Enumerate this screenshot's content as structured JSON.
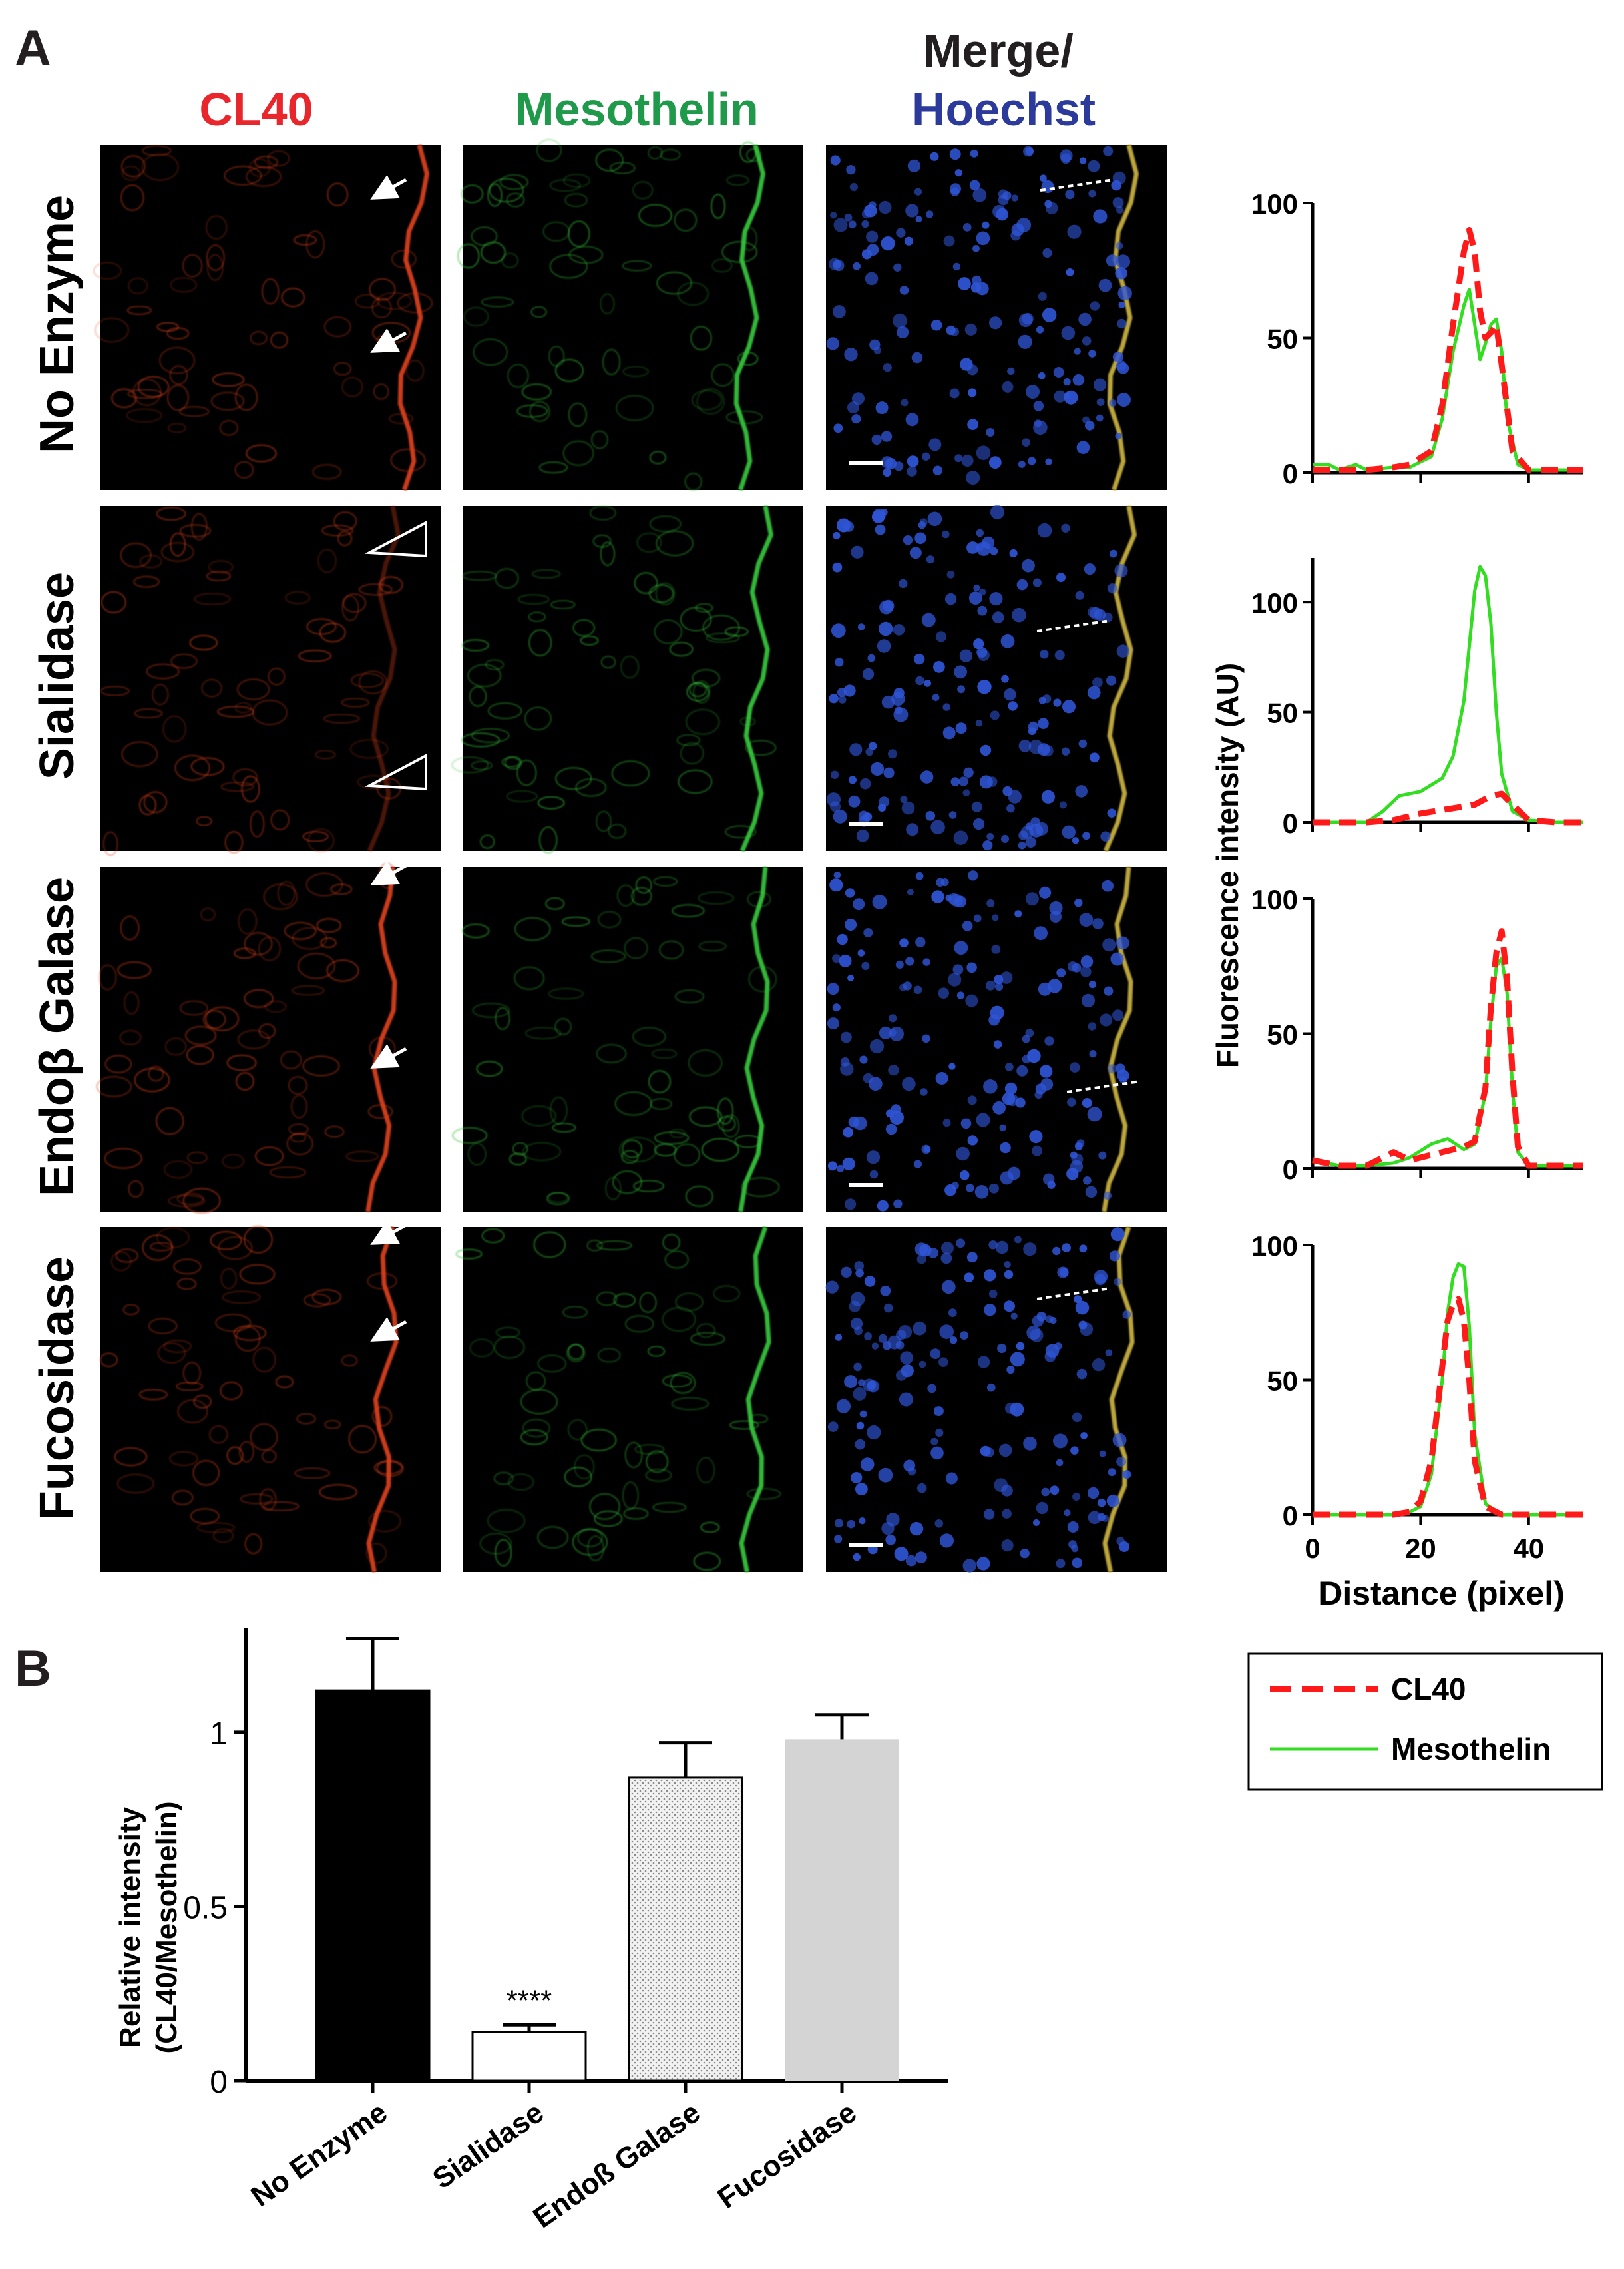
{
  "panel_a": {
    "label": "A",
    "column_headers": {
      "cl40": "CL40",
      "mesothelin": "Mesothelin",
      "merge_line1": "Merge/",
      "merge_line2": "Hoechst"
    },
    "row_labels": [
      "No Enzyme",
      "Sialidase",
      "Endoβ Galase",
      "Fucosidase"
    ],
    "colors": {
      "cl40": "#e8262b",
      "mesothelin": "#1f9a4a",
      "hoechst": "#2b3a9b",
      "tissue_red": "#d8401a",
      "tissue_green": "#36c23a",
      "nuclei": "#2f55d6"
    }
  },
  "line_profiles": {
    "y_axis_label": "Fluorescence intensity (AU)",
    "x_axis_label": "Distance (pixel)",
    "x_ticks": [
      "0",
      "20",
      "40"
    ],
    "x_range": [
      0,
      50
    ],
    "legend": {
      "cl40": "CL40",
      "mesothelin": "Mesothelin"
    },
    "series_colors": {
      "cl40": "#ff1a1a",
      "mesothelin": "#33dd22"
    },
    "chart_data": [
      {
        "type": "line",
        "panel": "No Enzyme",
        "ylim": [
          0,
          100
        ],
        "y_ticks": [
          "0",
          "50",
          "100"
        ],
        "series": [
          {
            "name": "CL40",
            "x": [
              0,
              5,
              10,
              15,
              18,
              22,
              24,
              26,
              28,
              29,
              30,
              31,
              32,
              33,
              34,
              35,
              37,
              40,
              45,
              50
            ],
            "values": [
              1,
              1,
              1,
              2,
              3,
              8,
              25,
              55,
              82,
              90,
              82,
              60,
              50,
              52,
              55,
              40,
              8,
              1,
              1,
              1
            ]
          },
          {
            "name": "Mesothelin",
            "x": [
              0,
              3,
              5,
              8,
              10,
              15,
              18,
              22,
              24,
              26,
              28,
              29,
              30,
              31,
              32,
              33,
              34,
              35,
              36,
              38,
              40,
              45,
              50
            ],
            "values": [
              3,
              3,
              1,
              3,
              1,
              2,
              2,
              6,
              20,
              45,
              62,
              68,
              55,
              42,
              48,
              55,
              57,
              45,
              20,
              3,
              1,
              1,
              1
            ]
          }
        ]
      },
      {
        "type": "line",
        "panel": "Sialidase",
        "ylim": [
          0,
          120
        ],
        "y_ticks": [
          "0",
          "50",
          "100"
        ],
        "series": [
          {
            "name": "CL40",
            "x": [
              0,
              10,
              15,
              20,
              25,
              30,
              33,
              35,
              37,
              40,
              45,
              50
            ],
            "values": [
              0,
              0,
              1,
              4,
              6,
              8,
              12,
              13,
              8,
              1,
              0,
              0
            ]
          },
          {
            "name": "Mesothelin",
            "x": [
              0,
              10,
              13,
              16,
              20,
              22,
              24,
              26,
              28,
              29,
              30,
              31,
              32,
              33,
              34,
              35,
              37,
              40,
              45,
              50
            ],
            "values": [
              0,
              0,
              5,
              12,
              14,
              17,
              20,
              30,
              55,
              80,
              105,
              116,
              112,
              90,
              50,
              22,
              5,
              1,
              0,
              0
            ]
          }
        ]
      },
      {
        "type": "line",
        "panel": "Endoβ Galase",
        "ylim": [
          0,
          100
        ],
        "y_ticks": [
          "0",
          "50",
          "100"
        ],
        "series": [
          {
            "name": "CL40",
            "x": [
              0,
              5,
              10,
              15,
              18,
              22,
              26,
              28,
              30,
              32,
              33,
              34,
              35,
              36,
              37,
              38,
              40,
              45,
              50
            ],
            "values": [
              3,
              1,
              1,
              6,
              3,
              5,
              7,
              8,
              10,
              30,
              60,
              80,
              88,
              70,
              35,
              8,
              1,
              1,
              1
            ]
          },
          {
            "name": "Mesothelin",
            "x": [
              0,
              5,
              10,
              15,
              18,
              22,
              25,
              28,
              30,
              32,
              33,
              34,
              35,
              36,
              37,
              38,
              40,
              45,
              50
            ],
            "values": [
              3,
              1,
              1,
              2,
              4,
              9,
              11,
              7,
              9,
              28,
              55,
              75,
              78,
              65,
              30,
              6,
              1,
              1,
              1
            ]
          }
        ]
      },
      {
        "type": "line",
        "panel": "Fucosidase",
        "ylim": [
          0,
          100
        ],
        "y_ticks": [
          "0",
          "50",
          "100"
        ],
        "series": [
          {
            "name": "CL40",
            "x": [
              0,
              15,
              18,
              20,
              22,
              24,
              25,
              26,
              27,
              28,
              29,
              30,
              32,
              35,
              40,
              50
            ],
            "values": [
              0,
              0,
              1,
              5,
              20,
              55,
              72,
              78,
              80,
              72,
              50,
              20,
              3,
              0,
              0,
              0
            ]
          },
          {
            "name": "Mesothelin",
            "x": [
              0,
              15,
              18,
              20,
              22,
              24,
              25,
              26,
              27,
              28,
              29,
              30,
              32,
              35,
              40,
              50
            ],
            "values": [
              0,
              0,
              1,
              3,
              15,
              50,
              75,
              88,
              93,
              92,
              70,
              30,
              4,
              0,
              0,
              0
            ]
          }
        ]
      }
    ]
  },
  "panel_b": {
    "label": "B",
    "y_label_line1": "Relative intensity",
    "y_label_line2": "(CL40/Mesothelin)",
    "significance": "****",
    "chart_data": {
      "type": "bar",
      "categories": [
        "No Enzyme",
        "Sialidase",
        "Endoß Galase",
        "Fucosidase"
      ],
      "values": [
        1.12,
        0.14,
        0.87,
        0.98
      ],
      "errors": [
        0.15,
        0.02,
        0.1,
        0.07
      ],
      "fills": [
        "#000000",
        "#ffffff",
        "#e8e8e8",
        "#d4d4d4"
      ],
      "y_ticks": [
        "0",
        "0.5",
        "1"
      ],
      "ylim": [
        0,
        1.3
      ]
    }
  }
}
